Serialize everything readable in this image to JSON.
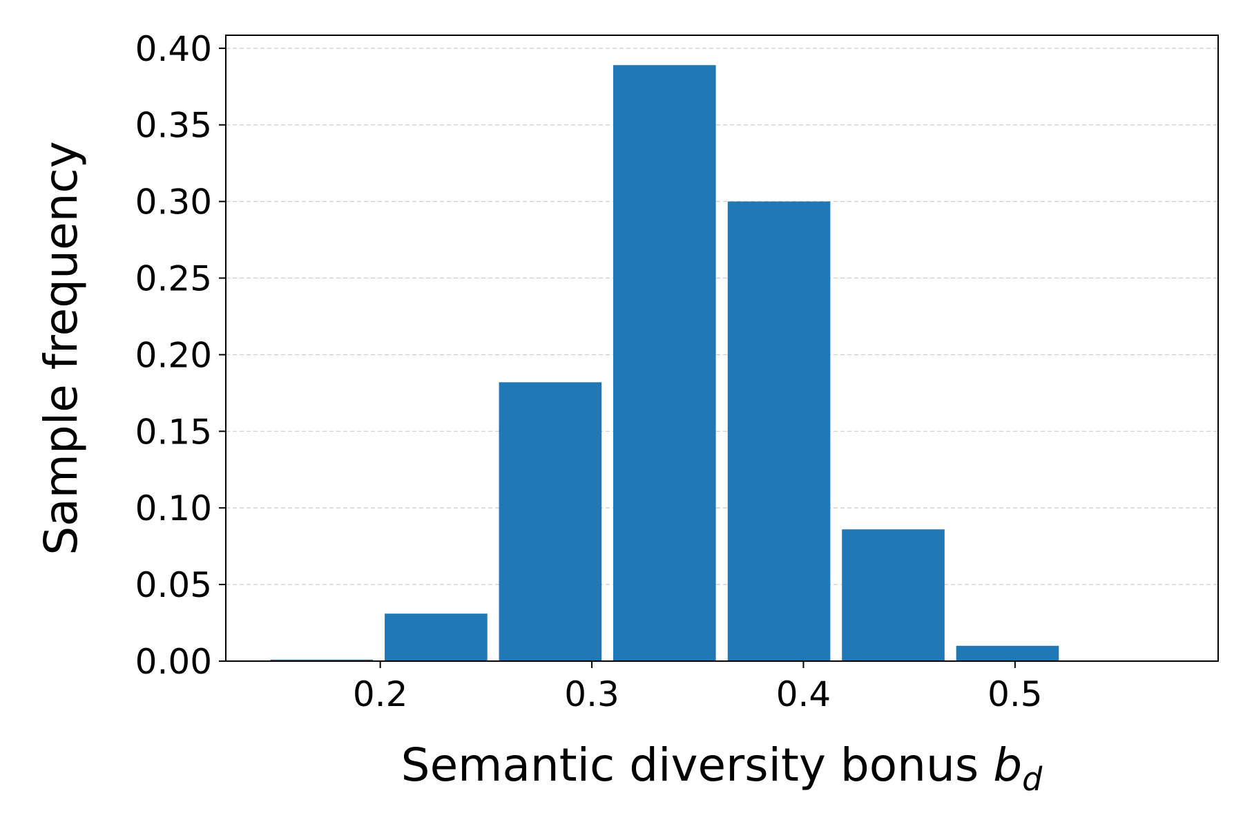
{
  "chart_data": {
    "type": "bar",
    "xlabel": "Semantic diversity bonus",
    "xlabel_math_base": "b",
    "xlabel_math_sub": "d",
    "ylabel": "Sample frequency",
    "xlim": [
      0.127,
      0.596
    ],
    "ylim": [
      0.0,
      0.4085
    ],
    "x_ticks": [
      0.2,
      0.3,
      0.4,
      0.5
    ],
    "x_tick_labels": [
      "0.2",
      "0.3",
      "0.4",
      "0.5"
    ],
    "y_ticks": [
      0.0,
      0.05,
      0.1,
      0.15,
      0.2,
      0.25,
      0.3,
      0.35,
      0.4
    ],
    "y_tick_labels": [
      "0.00",
      "0.05",
      "0.10",
      "0.15",
      "0.20",
      "0.25",
      "0.30",
      "0.35",
      "0.40"
    ],
    "grid": "horizontal dashed",
    "bar_width": 0.0485,
    "bars": [
      {
        "x_start": 0.148,
        "value": 0.001
      },
      {
        "x_start": 0.2021,
        "value": 0.031
      },
      {
        "x_start": 0.2561,
        "value": 0.182
      },
      {
        "x_start": 0.3101,
        "value": 0.389
      },
      {
        "x_start": 0.3642,
        "value": 0.3
      },
      {
        "x_start": 0.4182,
        "value": 0.086
      },
      {
        "x_start": 0.4722,
        "value": 0.01
      }
    ],
    "colors": {
      "bar": "#2178b4",
      "grid": "#cccccc",
      "axis": "#000000"
    }
  }
}
